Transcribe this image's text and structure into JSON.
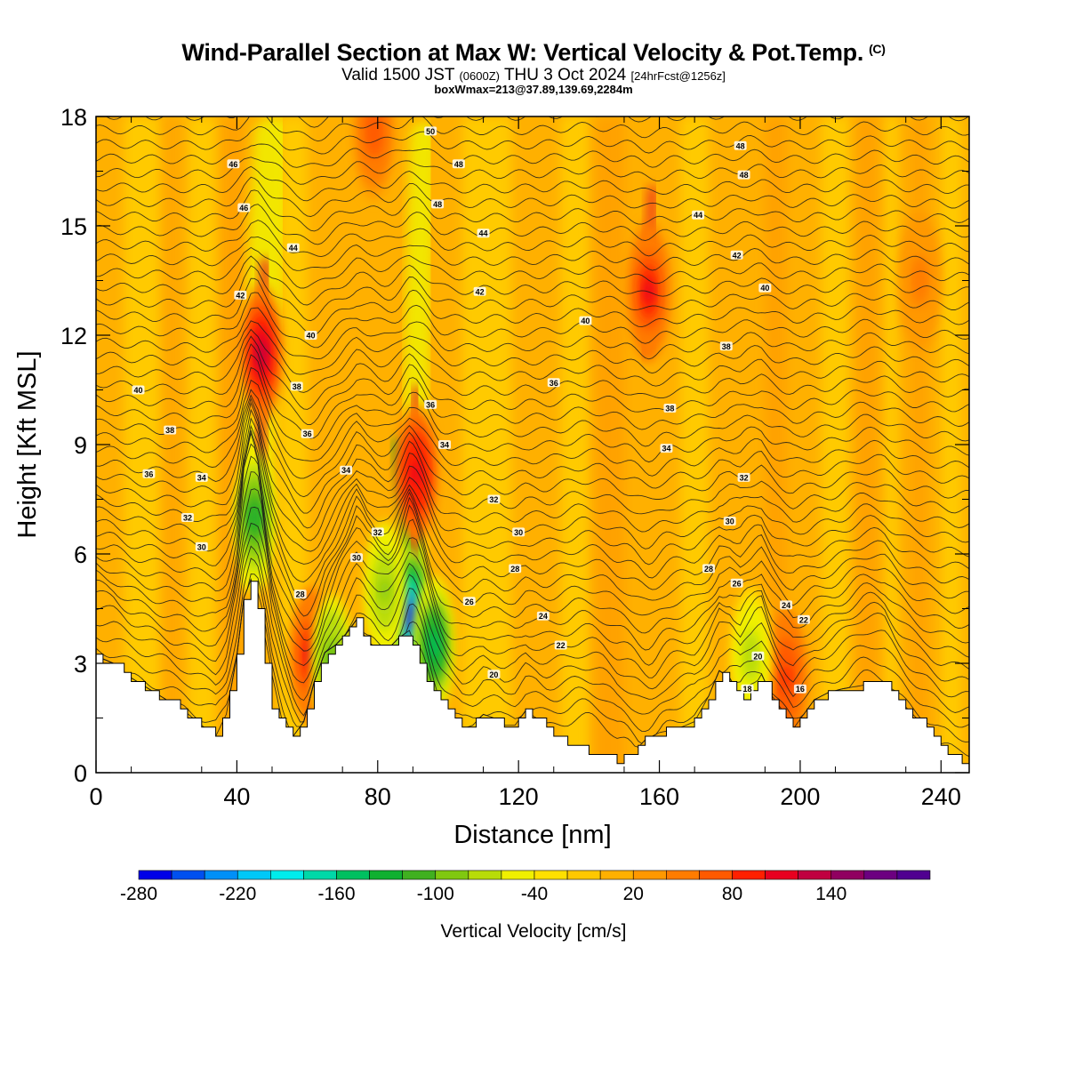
{
  "header": {
    "title": "Wind-Parallel Section at Max W: Vertical Velocity & Pot.Temp.",
    "copyright_mark": "(C)",
    "valid_prefix": "Valid 1500 JST",
    "valid_utc": "(0600Z)",
    "valid_date": "THU 3 Oct 2024",
    "forecast_tag": "[24hrFcst@1256z]",
    "box_info": "boxWmax=213@37.89,139.69,2284m"
  },
  "chart_data": {
    "type": "heatmap",
    "xlabel": "Distance [nm]",
    "ylabel": "Height [Kft MSL]",
    "xlim": [
      0,
      248
    ],
    "ylim": [
      0,
      18
    ],
    "x_ticks": [
      0,
      40,
      80,
      120,
      160,
      200,
      240
    ],
    "y_ticks": [
      0,
      3,
      6,
      9,
      12,
      15,
      18
    ],
    "colorbar": {
      "label": "Vertical Velocity [cm/s]",
      "min": -280,
      "step": 20,
      "tick_labels": [
        "-280",
        "-220",
        "-160",
        "-100",
        "-40",
        "20",
        "80",
        "140"
      ],
      "colors": [
        "#0000e8",
        "#0050f0",
        "#0090f8",
        "#00c8f8",
        "#00ecec",
        "#00d8a8",
        "#00c060",
        "#10b030",
        "#40b020",
        "#80c810",
        "#b8dc08",
        "#f0f000",
        "#ffe000",
        "#ffc800",
        "#ffb000",
        "#ff9800",
        "#ff7c00",
        "#ff5a00",
        "#ff2000",
        "#e80020",
        "#c00040",
        "#900060",
        "#6c0080",
        "#500090"
      ]
    },
    "terrain": [
      [
        0,
        3.2
      ],
      [
        5,
        3.0
      ],
      [
        10,
        2.6
      ],
      [
        15,
        2.3
      ],
      [
        20,
        2.0
      ],
      [
        25,
        1.7
      ],
      [
        30,
        1.3
      ],
      [
        34,
        1.0
      ],
      [
        37,
        1.6
      ],
      [
        40,
        3.2
      ],
      [
        42,
        4.8
      ],
      [
        44,
        5.3
      ],
      [
        46,
        4.5
      ],
      [
        48,
        3.0
      ],
      [
        50,
        1.8
      ],
      [
        53,
        1.2
      ],
      [
        56,
        1.0
      ],
      [
        59,
        1.4
      ],
      [
        62,
        2.5
      ],
      [
        65,
        3.3
      ],
      [
        68,
        3.5
      ],
      [
        71,
        3.8
      ],
      [
        74,
        4.2
      ],
      [
        77,
        3.6
      ],
      [
        80,
        3.4
      ],
      [
        83,
        3.4
      ],
      [
        86,
        3.7
      ],
      [
        89,
        3.9
      ],
      [
        92,
        3.0
      ],
      [
        95,
        2.4
      ],
      [
        98,
        1.9
      ],
      [
        101,
        1.5
      ],
      [
        104,
        1.2
      ],
      [
        107,
        1.3
      ],
      [
        110,
        1.6
      ],
      [
        113,
        1.5
      ],
      [
        116,
        1.3
      ],
      [
        119,
        1.3
      ],
      [
        122,
        1.7
      ],
      [
        125,
        1.5
      ],
      [
        128,
        1.2
      ],
      [
        131,
        1.0
      ],
      [
        134,
        0.8
      ],
      [
        137,
        0.7
      ],
      [
        140,
        0.6
      ],
      [
        144,
        0.5
      ],
      [
        148,
        0.3
      ],
      [
        152,
        0.5
      ],
      [
        156,
        0.9
      ],
      [
        160,
        1.1
      ],
      [
        165,
        1.2
      ],
      [
        170,
        1.4
      ],
      [
        174,
        2.1
      ],
      [
        177,
        2.8
      ],
      [
        180,
        2.6
      ],
      [
        183,
        1.9
      ],
      [
        186,
        2.2
      ],
      [
        189,
        2.7
      ],
      [
        192,
        2.1
      ],
      [
        195,
        1.7
      ],
      [
        198,
        1.2
      ],
      [
        201,
        1.6
      ],
      [
        204,
        2.0
      ],
      [
        208,
        2.2
      ],
      [
        212,
        2.3
      ],
      [
        218,
        2.4
      ],
      [
        224,
        2.4
      ],
      [
        228,
        2.0
      ],
      [
        232,
        1.6
      ],
      [
        236,
        1.2
      ],
      [
        240,
        0.7
      ],
      [
        244,
        0.4
      ],
      [
        248,
        0.3
      ]
    ],
    "updraft_cores": [
      {
        "x": 47,
        "y": 11.5,
        "w": 120
      },
      {
        "x": 61,
        "y": 3.2,
        "w": 100
      },
      {
        "x": 91,
        "y": 8.2,
        "w": 115
      },
      {
        "x": 79,
        "y": 17.6,
        "w": 70
      },
      {
        "x": 157,
        "y": 13.2,
        "w": 100
      },
      {
        "x": 196,
        "y": 2.6,
        "w": 80
      },
      {
        "x": 234,
        "y": 13.5,
        "w": 45
      }
    ],
    "downdraft_cores": [
      {
        "x": 89,
        "y": 4.3,
        "w": -270
      },
      {
        "x": 96,
        "y": 3.5,
        "w": -150
      },
      {
        "x": 45,
        "y": 7.0,
        "w": -140
      },
      {
        "x": 67,
        "y": 3.0,
        "w": -110
      },
      {
        "x": 82,
        "y": 5.0,
        "w": -90
      },
      {
        "x": 186,
        "y": 3.2,
        "w": -80
      }
    ],
    "contour_labels": [
      {
        "x": 39,
        "y": 16.7,
        "text": "46"
      },
      {
        "x": 42,
        "y": 15.5,
        "text": "46"
      },
      {
        "x": 56,
        "y": 14.4,
        "text": "44"
      },
      {
        "x": 41,
        "y": 13.1,
        "text": "42"
      },
      {
        "x": 61,
        "y": 12.0,
        "text": "40"
      },
      {
        "x": 57,
        "y": 10.6,
        "text": "38"
      },
      {
        "x": 12,
        "y": 10.5,
        "text": "40"
      },
      {
        "x": 21,
        "y": 9.4,
        "text": "38"
      },
      {
        "x": 60,
        "y": 9.3,
        "text": "36"
      },
      {
        "x": 15,
        "y": 8.2,
        "text": "36"
      },
      {
        "x": 30,
        "y": 8.1,
        "text": "34"
      },
      {
        "x": 71,
        "y": 8.3,
        "text": "34"
      },
      {
        "x": 26,
        "y": 7.0,
        "text": "32"
      },
      {
        "x": 30,
        "y": 6.2,
        "text": "30"
      },
      {
        "x": 80,
        "y": 6.6,
        "text": "32"
      },
      {
        "x": 74,
        "y": 5.9,
        "text": "30"
      },
      {
        "x": 58,
        "y": 4.9,
        "text": "28"
      },
      {
        "x": 95,
        "y": 17.6,
        "text": "50"
      },
      {
        "x": 103,
        "y": 16.7,
        "text": "48"
      },
      {
        "x": 97,
        "y": 15.6,
        "text": "48"
      },
      {
        "x": 110,
        "y": 14.8,
        "text": "44"
      },
      {
        "x": 109,
        "y": 13.2,
        "text": "42"
      },
      {
        "x": 95,
        "y": 10.1,
        "text": "36"
      },
      {
        "x": 99,
        "y": 9.0,
        "text": "34"
      },
      {
        "x": 130,
        "y": 10.7,
        "text": "36"
      },
      {
        "x": 113,
        "y": 7.5,
        "text": "32"
      },
      {
        "x": 120,
        "y": 6.6,
        "text": "30"
      },
      {
        "x": 119,
        "y": 5.6,
        "text": "28"
      },
      {
        "x": 106,
        "y": 4.7,
        "text": "26"
      },
      {
        "x": 127,
        "y": 4.3,
        "text": "24"
      },
      {
        "x": 132,
        "y": 3.5,
        "text": "22"
      },
      {
        "x": 113,
        "y": 2.7,
        "text": "20"
      },
      {
        "x": 139,
        "y": 12.4,
        "text": "40"
      },
      {
        "x": 163,
        "y": 10.0,
        "text": "38"
      },
      {
        "x": 162,
        "y": 8.9,
        "text": "34"
      },
      {
        "x": 183,
        "y": 17.2,
        "text": "48"
      },
      {
        "x": 184,
        "y": 16.4,
        "text": "48"
      },
      {
        "x": 171,
        "y": 15.3,
        "text": "44"
      },
      {
        "x": 182,
        "y": 14.2,
        "text": "42"
      },
      {
        "x": 190,
        "y": 13.3,
        "text": "40"
      },
      {
        "x": 179,
        "y": 11.7,
        "text": "38"
      },
      {
        "x": 184,
        "y": 8.1,
        "text": "32"
      },
      {
        "x": 180,
        "y": 6.9,
        "text": "30"
      },
      {
        "x": 174,
        "y": 5.6,
        "text": "28"
      },
      {
        "x": 182,
        "y": 5.2,
        "text": "26"
      },
      {
        "x": 196,
        "y": 4.6,
        "text": "24"
      },
      {
        "x": 201,
        "y": 4.2,
        "text": "22"
      },
      {
        "x": 188,
        "y": 3.2,
        "text": "20"
      },
      {
        "x": 185,
        "y": 2.3,
        "text": "18"
      },
      {
        "x": 200,
        "y": 2.3,
        "text": "16"
      }
    ]
  }
}
